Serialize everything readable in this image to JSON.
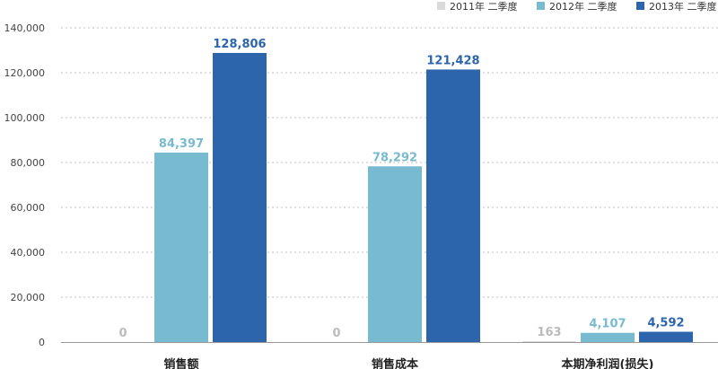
{
  "chart_data": {
    "type": "bar",
    "categories": [
      "销售额",
      "销售成本",
      "本期净利润(损失)"
    ],
    "series": [
      {
        "name": "2011年 二季度",
        "color": "#d9d9d9",
        "values": [
          0,
          0,
          163
        ],
        "labels": [
          "0",
          "0",
          "163"
        ]
      },
      {
        "name": "2012年 二季度",
        "color": "#78bbd0",
        "values": [
          84397,
          78292,
          4107
        ],
        "labels": [
          "84,397",
          "78,292",
          "4,107"
        ]
      },
      {
        "name": "2013年 二季度",
        "color": "#2d65ad",
        "values": [
          128806,
          121428,
          4592
        ],
        "labels": [
          "128,806",
          "121,428",
          "4,592"
        ]
      }
    ],
    "ylim": [
      0,
      140000
    ],
    "yticks": [
      0,
      20000,
      40000,
      60000,
      80000,
      100000,
      120000,
      140000
    ],
    "ytick_labels": [
      "0",
      "20,000",
      "40,000",
      "60,000",
      "80,000",
      "100,000",
      "120,000",
      "140,000"
    ],
    "grid": true,
    "legend_position": "top-right",
    "label_colors": {
      "2011年 二季度": "#bbbbbb",
      "2012年 二季度": "#78bbd0",
      "2013年 二季度": "#2d65ad"
    }
  }
}
